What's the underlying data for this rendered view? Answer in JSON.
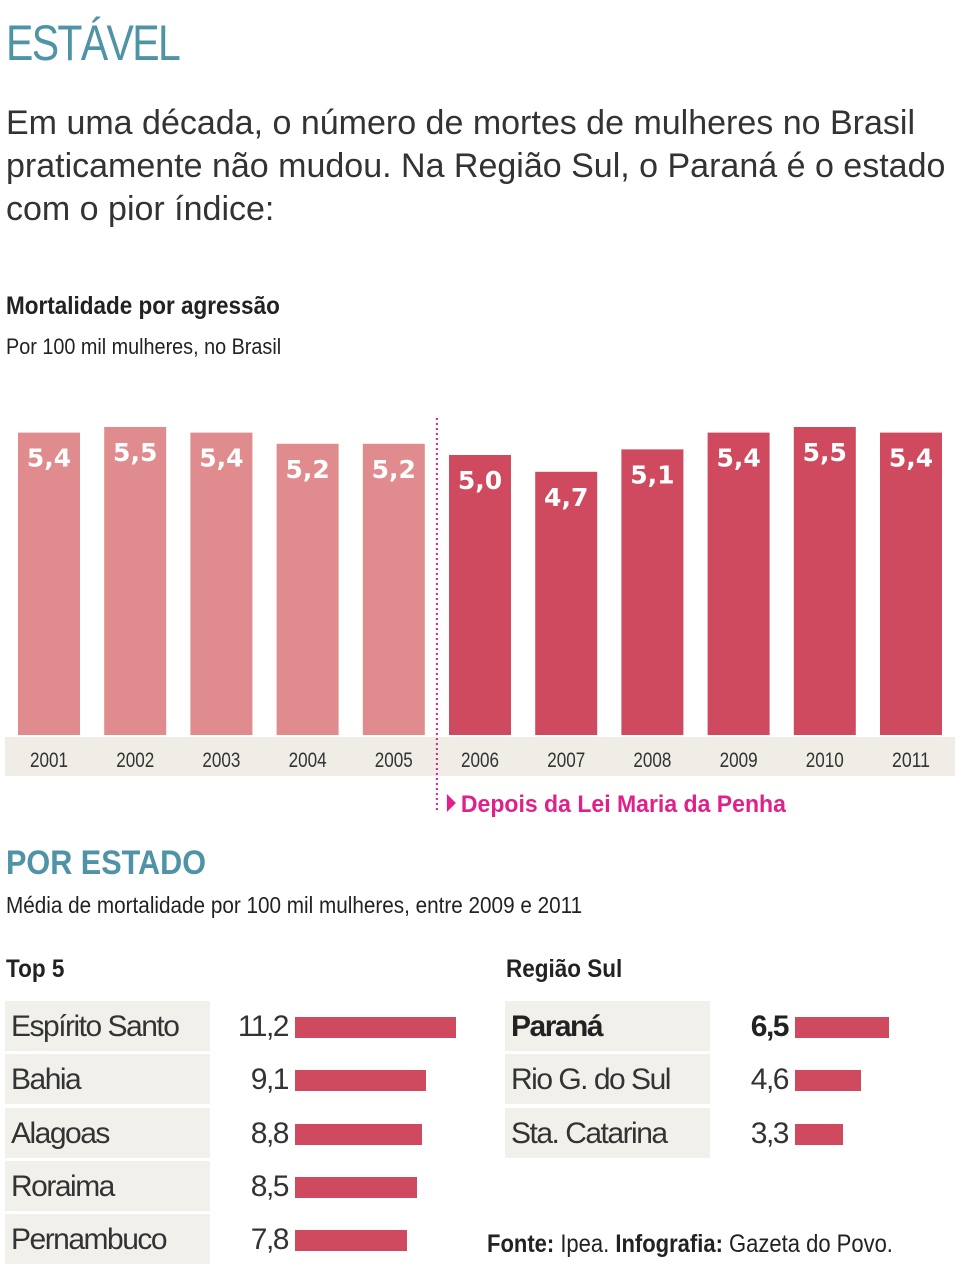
{
  "kicker": "ESTÁVEL",
  "intro": "Em uma década, o número de mortes de mulheres no Brasil praticamente não mudou. Na Região Sul, o Paraná é o estado com o pior índice:",
  "chart_data": [
    {
      "type": "bar",
      "title": "Mortalidade por agressão",
      "subtitle": "Por 100 mil mulheres, no Brasil",
      "categories": [
        "2001",
        "2002",
        "2003",
        "2004",
        "2005",
        "2006",
        "2007",
        "2008",
        "2009",
        "2010",
        "2011"
      ],
      "values": [
        5.4,
        5.5,
        5.4,
        5.2,
        5.2,
        5.0,
        4.7,
        5.1,
        5.4,
        5.5,
        5.4
      ],
      "value_labels": [
        "5,4",
        "5,5",
        "5,4",
        "5,2",
        "5,2",
        "5,0",
        "4,7",
        "5,1",
        "5,4",
        "5,5",
        "5,4"
      ],
      "ylim": [
        0,
        5.5
      ],
      "grid": false,
      "colors": {
        "before": "#e08b8e",
        "after": "#cf4a5e",
        "band": "#efede5",
        "marker": "#e0218a"
      },
      "annotation": {
        "after_category": "2005",
        "text": "Depois da Lei Maria da Penha"
      }
    },
    {
      "type": "bar",
      "orientation": "horizontal",
      "title": "Top 5",
      "categories": [
        "Espírito Santo",
        "Bahia",
        "Alagoas",
        "Roraima",
        "Pernambuco"
      ],
      "values": [
        11.2,
        9.1,
        8.8,
        8.5,
        7.8
      ],
      "value_labels": [
        "11,2",
        "9,1",
        "8,8",
        "8,5",
        "7,8"
      ]
    },
    {
      "type": "bar",
      "orientation": "horizontal",
      "title": "Região Sul",
      "categories": [
        "Paraná",
        "Rio G. do Sul",
        "Sta. Catarina"
      ],
      "values": [
        6.5,
        4.6,
        3.3
      ],
      "value_labels": [
        "6,5",
        "4,6",
        "3,3"
      ],
      "highlight": "Paraná"
    }
  ],
  "section": {
    "title": "POR ESTADO",
    "subtitle": "Média de mortalidade por 100 mil mulheres, entre 2009 e 2011"
  },
  "source": {
    "label1": "Fonte:",
    "text1": " Ipea. ",
    "label2": "Infografia:",
    "text2": " Gazeta do Povo."
  }
}
